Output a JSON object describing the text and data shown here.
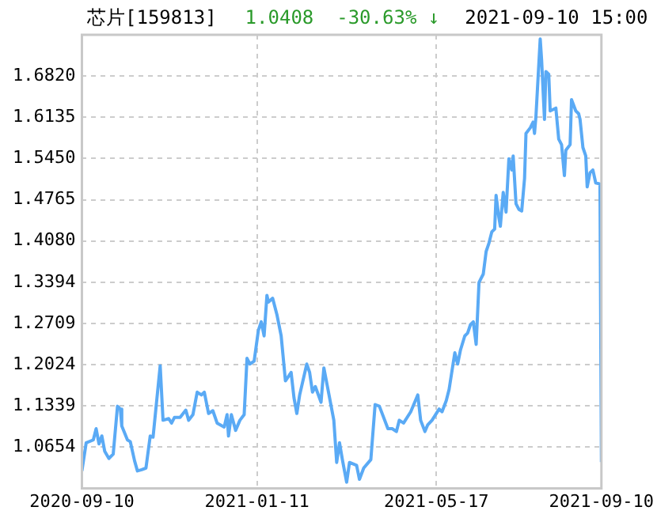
{
  "chart_data": {
    "type": "line",
    "title": "芯片[159813]",
    "subtitle": "1.0408  -30.63% ↓",
    "annotations": [
      "2021-09-10 15:00"
    ],
    "x": [
      "2020-09-10",
      "2020-09-13",
      "2020-09-18",
      "2020-09-20",
      "2020-09-22",
      "2020-09-24",
      "2020-09-26",
      "2020-09-29",
      "2020-10-02",
      "2020-10-05",
      "2020-10-07",
      "2020-10-08",
      "2020-10-12",
      "2020-10-14",
      "2020-10-17",
      "2020-10-19",
      "2020-10-22",
      "2020-10-25",
      "2020-10-28",
      "2020-10-30",
      "2020-11-04",
      "2020-11-06",
      "2020-11-10",
      "2020-11-12",
      "2020-11-14",
      "2020-11-18",
      "2020-11-22",
      "2020-11-24",
      "2020-11-27",
      "2020-11-30",
      "2020-12-03",
      "2020-12-05",
      "2020-12-08",
      "2020-12-11",
      "2020-12-14",
      "2020-12-19",
      "2020-12-21",
      "2020-12-22",
      "2020-12-24",
      "2020-12-27",
      "2020-12-30",
      "2021-01-02",
      "2021-01-04",
      "2021-01-06",
      "2021-01-09",
      "2021-01-12",
      "2021-01-14",
      "2021-01-16",
      "2021-01-18",
      "2021-01-19",
      "2021-01-22",
      "2021-01-25",
      "2021-01-28",
      "2021-01-31",
      "2021-02-04",
      "2021-02-06",
      "2021-02-08",
      "2021-02-10",
      "2021-02-15",
      "2021-02-17",
      "2021-02-19",
      "2021-02-21",
      "2021-02-25",
      "2021-02-27",
      "2021-03-03",
      "2021-03-06",
      "2021-03-08",
      "2021-03-10",
      "2021-03-12",
      "2021-03-15",
      "2021-03-17",
      "2021-03-22",
      "2021-03-24",
      "2021-03-27",
      "2021-04-01",
      "2021-04-04",
      "2021-04-07",
      "2021-04-13",
      "2021-04-16",
      "2021-04-19",
      "2021-04-21",
      "2021-04-24",
      "2021-04-29",
      "2021-05-04",
      "2021-05-06",
      "2021-05-09",
      "2021-05-11",
      "2021-05-14",
      "2021-05-19",
      "2021-05-21",
      "2021-05-24",
      "2021-05-26",
      "2021-05-30",
      "2021-06-01",
      "2021-06-03",
      "2021-06-06",
      "2021-06-08",
      "2021-06-10",
      "2021-06-12",
      "2021-06-14",
      "2021-06-16",
      "2021-06-19",
      "2021-06-21",
      "2021-06-23",
      "2021-06-25",
      "2021-06-27",
      "2021-06-28",
      "2021-06-30",
      "2021-07-01",
      "2021-07-03",
      "2021-07-05",
      "2021-07-07",
      "2021-07-09",
      "2021-07-10",
      "2021-07-12",
      "2021-07-14",
      "2021-07-16",
      "2021-07-18",
      "2021-07-19",
      "2021-07-22",
      "2021-07-24",
      "2021-07-25",
      "2021-07-26",
      "2021-07-29",
      "2021-07-30",
      "2021-08-01",
      "2021-08-02",
      "2021-08-04",
      "2021-08-05",
      "2021-08-09",
      "2021-08-11",
      "2021-08-13",
      "2021-08-15",
      "2021-08-16",
      "2021-08-19",
      "2021-08-20",
      "2021-08-23",
      "2021-08-25",
      "2021-08-26",
      "2021-08-28",
      "2021-08-30",
      "2021-08-31",
      "2021-09-02",
      "2021-09-04",
      "2021-09-06",
      "2021-09-09",
      "2021-09-10"
    ],
    "series": [
      {
        "color": "#5aaaf5",
        "values": [
          1.0261,
          1.0728,
          1.0775,
          1.0962,
          1.071,
          1.0841,
          1.0588,
          1.0467,
          1.0541,
          1.1335,
          1.1289,
          1.1009,
          1.0775,
          1.0747,
          1.0429,
          1.0261,
          1.028,
          1.0308,
          1.084,
          1.0822,
          1.2008,
          1.1102,
          1.113,
          1.1055,
          1.1149,
          1.1149,
          1.127,
          1.1102,
          1.1195,
          1.1569,
          1.1522,
          1.1569,
          1.1214,
          1.1261,
          1.1055,
          1.099,
          1.1195,
          1.084,
          1.1195,
          1.0934,
          1.1102,
          1.1195,
          1.213,
          1.2036,
          1.2083,
          1.2597,
          1.2737,
          1.2503,
          1.3176,
          1.3064,
          1.3129,
          1.2858,
          1.2503,
          1.1756,
          1.1896,
          1.1476,
          1.1214,
          1.1522,
          1.2036,
          1.1896,
          1.1569,
          1.1662,
          1.1401,
          1.1971,
          1.1476,
          1.1102,
          1.0401,
          1.0728,
          1.0448,
          1.0074,
          1.0401,
          1.0354,
          1.0121,
          1.0308,
          1.0448,
          1.1363,
          1.1335,
          1.0962,
          1.0962,
          1.0915,
          1.1102,
          1.1055,
          1.1242,
          1.1522,
          1.1102,
          1.0915,
          1.1027,
          1.1102,
          1.1289,
          1.1242,
          1.1429,
          1.1616,
          1.2223,
          1.2036,
          1.227,
          1.2503,
          1.255,
          1.269,
          1.2737,
          1.2363,
          1.3391,
          1.3531,
          1.3905,
          1.4045,
          1.4232,
          1.4279,
          1.4839,
          1.4465,
          1.4325,
          1.4886,
          1.4559,
          1.5446,
          1.526,
          1.5493,
          1.4699,
          1.4606,
          1.4578,
          1.5119,
          1.5867,
          1.596,
          1.6054,
          1.5867,
          1.6147,
          1.7436,
          1.7081,
          1.61,
          1.6895,
          1.6848,
          1.6241,
          1.6287,
          1.5773,
          1.568,
          1.5166,
          1.5587,
          1.568,
          1.6427,
          1.6241,
          1.6194,
          1.61,
          1.5633,
          1.5493,
          1.4979,
          1.5213,
          1.526,
          1.5045,
          1.5026,
          1.0408
        ]
      }
    ],
    "xlim": [
      "2020-09-10",
      "2021-09-10"
    ],
    "xticks": [
      {
        "value": "2020-09-10",
        "label": "2020-09-10"
      },
      {
        "value": "2021-01-11",
        "label": "2021-01-11"
      },
      {
        "value": "2021-05-17",
        "label": "2021-05-17"
      },
      {
        "value": "2021-09-10",
        "label": "2021-09-10"
      }
    ],
    "ylim": [
      0.9969,
      1.7505
    ],
    "yticks": [
      1.0654,
      1.1339,
      1.2024,
      1.2709,
      1.3394,
      {
        "value": 1.408,
        "label": "1.4080"
      },
      1.4765,
      {
        "value": 1.545,
        "label": "1.5450"
      },
      1.6135,
      {
        "value": 1.682,
        "label": "1.6820"
      }
    ],
    "grid": true,
    "legend": false,
    "marker": "none",
    "line_style": "solid"
  }
}
